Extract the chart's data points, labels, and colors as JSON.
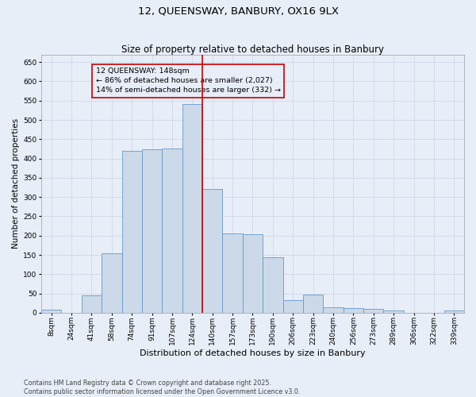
{
  "title": "12, QUEENSWAY, BANBURY, OX16 9LX",
  "subtitle": "Size of property relative to detached houses in Banbury",
  "xlabel": "Distribution of detached houses by size in Banbury",
  "ylabel": "Number of detached properties",
  "footnote": "Contains HM Land Registry data © Crown copyright and database right 2025.\nContains public sector information licensed under the Open Government Licence v3.0.",
  "bins": [
    "8sqm",
    "24sqm",
    "41sqm",
    "58sqm",
    "74sqm",
    "91sqm",
    "107sqm",
    "124sqm",
    "140sqm",
    "157sqm",
    "173sqm",
    "190sqm",
    "206sqm",
    "223sqm",
    "240sqm",
    "256sqm",
    "273sqm",
    "289sqm",
    "306sqm",
    "322sqm",
    "339sqm"
  ],
  "values": [
    8,
    0,
    45,
    155,
    420,
    423,
    425,
    542,
    322,
    205,
    203,
    143,
    33,
    47,
    15,
    13,
    10,
    7,
    0,
    0,
    7
  ],
  "bar_color": "#ccd9e8",
  "bar_edge_color": "#6699cc",
  "vline_x_index": 7.5,
  "vline_color": "#cc0000",
  "annotation_title": "12 QUEENSWAY: 148sqm",
  "annotation_line1": "← 86% of detached houses are smaller (2,027)",
  "annotation_line2": "14% of semi-detached houses are larger (332) →",
  "annotation_box_color": "#cc0000",
  "ylim": [
    0,
    670
  ],
  "yticks": [
    0,
    50,
    100,
    150,
    200,
    250,
    300,
    350,
    400,
    450,
    500,
    550,
    600,
    650
  ],
  "background_color": "#e8eef8",
  "grid_color": "#d0d8e8",
  "title_fontsize": 9.5,
  "subtitle_fontsize": 8.5,
  "ylabel_fontsize": 7.5,
  "xlabel_fontsize": 8,
  "tick_fontsize": 6.5,
  "annotation_fontsize": 6.8,
  "footnote_fontsize": 5.8
}
